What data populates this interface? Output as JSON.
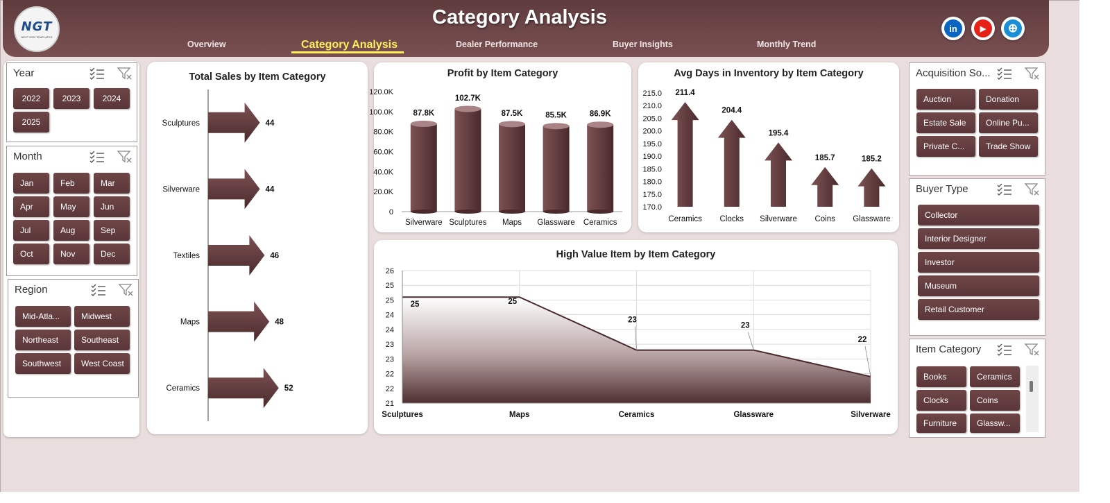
{
  "header": {
    "title": "Category Analysis",
    "logo_text": "NGT",
    "logo_sub": "NEXT GEN TEMPLATES",
    "tabs": [
      {
        "label": "Overview"
      },
      {
        "label": "Category Analysis"
      },
      {
        "label": "Dealer Performance"
      },
      {
        "label": "Buyer Insights"
      },
      {
        "label": "Monthly Trend"
      }
    ],
    "active_tab": "Category Analysis",
    "social": [
      {
        "icon": "linkedin-icon",
        "glyph": "in",
        "color": "#0a66c2"
      },
      {
        "icon": "youtube-icon",
        "glyph": "▶",
        "color": "#e62117"
      },
      {
        "icon": "globe-icon",
        "glyph": "⊕",
        "color": "#1a8fd6"
      }
    ]
  },
  "slicers": {
    "year": {
      "title": "Year",
      "items": [
        "2022",
        "2023",
        "2024",
        "2025"
      ]
    },
    "month": {
      "title": "Month",
      "items": [
        "Jan",
        "Feb",
        "Mar",
        "Apr",
        "May",
        "Jun",
        "Jul",
        "Aug",
        "Sep",
        "Oct",
        "Nov",
        "Dec"
      ]
    },
    "region": {
      "title": "Region",
      "items": [
        "Mid-Atla...",
        "Midwest",
        "Northeast",
        "Southeast",
        "Southwest",
        "West Coast"
      ]
    },
    "acquisition": {
      "title": "Acquisition So...",
      "items": [
        "Auction",
        "Donation",
        "Estate Sale",
        "Online Pu...",
        "Private C...",
        "Trade Show"
      ]
    },
    "buyer_type": {
      "title": "Buyer Type",
      "items": [
        "Collector",
        "Interior Designer",
        "Investor",
        "Museum",
        "Retail Customer"
      ]
    },
    "item_category": {
      "title": "Item Category",
      "items": [
        "Books",
        "Ceramics",
        "Clocks",
        "Coins",
        "Furniture",
        "Glassw..."
      ]
    }
  },
  "colors": {
    "accent": "#5f3b3d",
    "active_tab": "#ffef5a",
    "bar_dark": "#4a2a2c",
    "bar_light": "#7d5254"
  },
  "chart_data": [
    {
      "id": "total-sales",
      "type": "bar",
      "orientation": "horizontal",
      "title": "Total Sales by Item Category",
      "categories": [
        "Sculptures",
        "Silverware",
        "Textiles",
        "Maps",
        "Ceramics"
      ],
      "values": [
        44,
        44,
        46,
        48,
        52
      ],
      "value_labels": [
        "44",
        "44",
        "46",
        "48",
        "52"
      ],
      "marker": "arrow"
    },
    {
      "id": "profit",
      "type": "bar",
      "title": "Profit by Item Category",
      "categories": [
        "Silverware",
        "Sculptures",
        "Maps",
        "Glassware",
        "Ceramics"
      ],
      "values": [
        87.8,
        102.7,
        87.5,
        85.5,
        86.9
      ],
      "value_labels": [
        "87.8K",
        "102.7K",
        "87.5K",
        "85.5K",
        "86.9K"
      ],
      "ylim": [
        0,
        120
      ],
      "ticks": [
        "0",
        "20.0K",
        "40.0K",
        "60.0K",
        "80.0K",
        "100.0K",
        "120.0K"
      ],
      "marker": "cylinder"
    },
    {
      "id": "avg-days",
      "type": "bar",
      "title": "Avg Days in Inventory by Item Category",
      "categories": [
        "Ceramics",
        "Clocks",
        "Silverware",
        "Coins",
        "Glassware"
      ],
      "values": [
        211.4,
        204.4,
        195.4,
        185.7,
        185.2
      ],
      "value_labels": [
        "211.4",
        "204.4",
        "195.4",
        "185.7",
        "185.2"
      ],
      "ylim": [
        170,
        215
      ],
      "ticks": [
        "170.0",
        "175.0",
        "180.0",
        "185.0",
        "190.0",
        "195.0",
        "200.0",
        "205.0",
        "210.0",
        "215.0"
      ],
      "marker": "arrow-up"
    },
    {
      "id": "high-value",
      "type": "area",
      "title": "High Value Item by Item Category",
      "categories": [
        "Sculptures",
        "Maps",
        "Ceramics",
        "Glassware",
        "Silverware"
      ],
      "values": [
        25,
        25,
        23,
        23,
        22
      ],
      "value_labels": [
        "25",
        "25",
        "23",
        "23",
        "22"
      ],
      "ylim": [
        21,
        26
      ],
      "ticks": [
        "21",
        "22",
        "22",
        "23",
        "23",
        "24",
        "24",
        "25",
        "25",
        "26"
      ],
      "grid": true
    }
  ]
}
